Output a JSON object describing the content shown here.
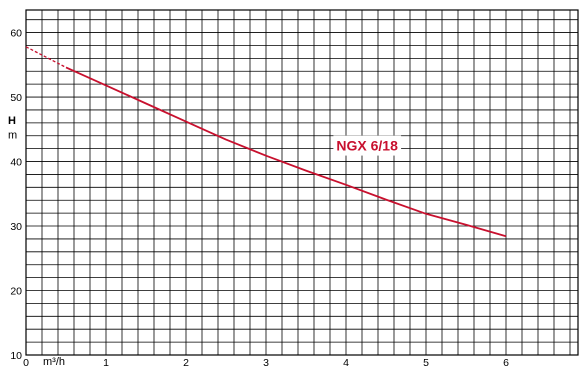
{
  "chart_data": {
    "type": "line",
    "xlabel": "m³/h",
    "ylabel": "H",
    "ylabel_unit": "m",
    "xlim": [
      0,
      6.9
    ],
    "ylim": [
      10,
      63.5
    ],
    "x_ticks": [
      0,
      1,
      2,
      3,
      4,
      5,
      6
    ],
    "x_tick_labels": [
      "0",
      "1",
      "2",
      "3",
      "4",
      "5",
      "6"
    ],
    "y_ticks": [
      10,
      20,
      30,
      40,
      50,
      60
    ],
    "y_tick_labels": [
      "10",
      "20",
      "30",
      "40",
      "50",
      "60"
    ],
    "grid": true,
    "minor_x_step": 0.2,
    "minor_y_step": 2,
    "colors": {
      "curve": "#c8102e",
      "grid": "#000000",
      "label_bg": "#ffffff"
    },
    "series": [
      {
        "name": "NGX 6/18",
        "x": [
          0,
          0.5,
          1,
          1.5,
          2,
          2.5,
          3,
          3.5,
          4,
          4.5,
          5,
          5.5,
          6
        ],
        "y": [
          57.8,
          54.6,
          51.8,
          49.0,
          46.2,
          43.4,
          40.9,
          38.6,
          36.4,
          34.1,
          31.9,
          30.2,
          28.4
        ],
        "dashed_until_x": 0.5
      }
    ]
  }
}
